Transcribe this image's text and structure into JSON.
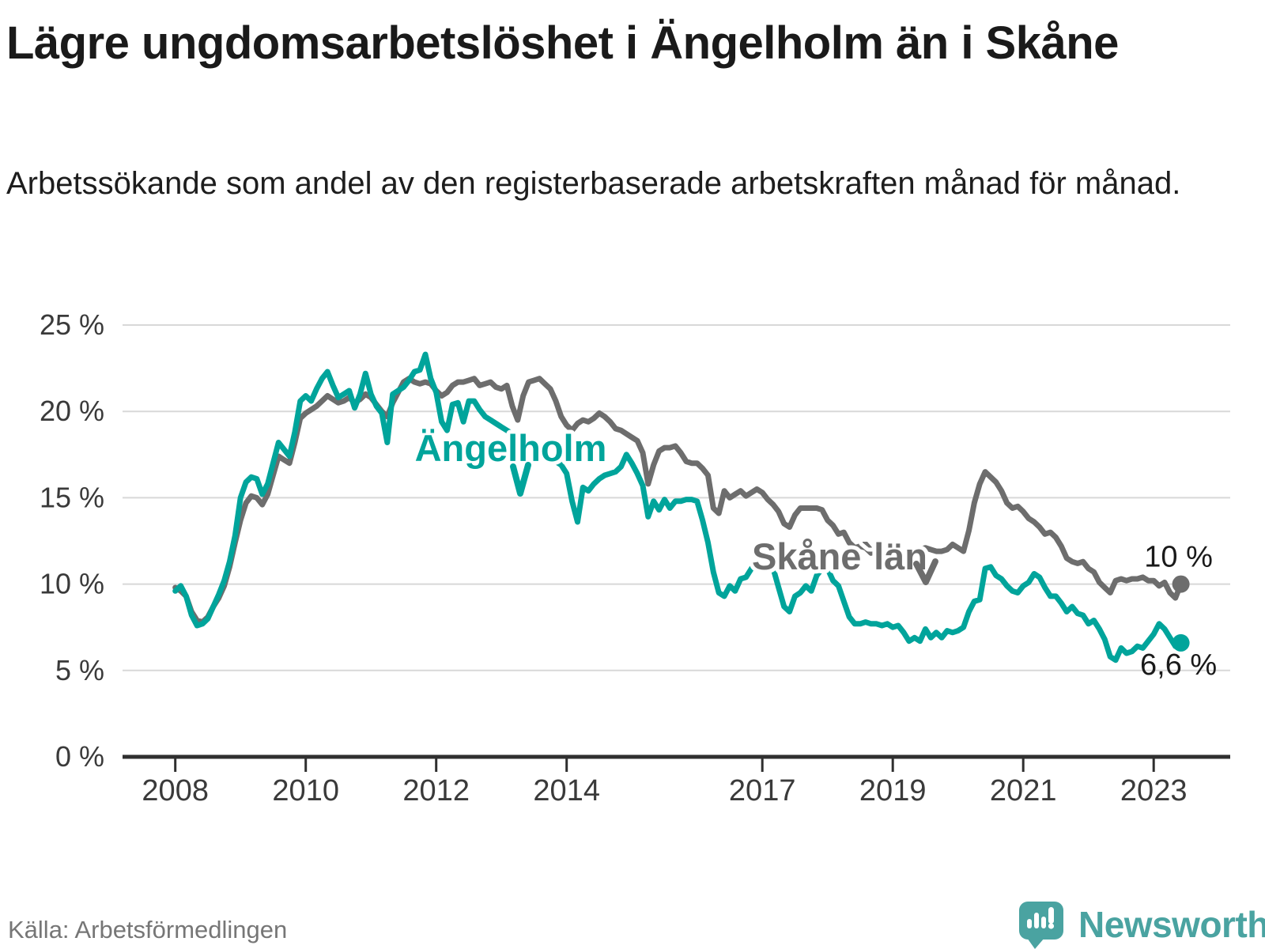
{
  "title": "Lägre ungdomsarbetslöshet i Ängelholm än i Skåne",
  "subtitle": "Arbetssökande som andel av den registerbaserade arbetskraften månad för månad.",
  "source": {
    "text": "Källa: Arbetsförmedlingen"
  },
  "brand": {
    "name": "Newsworthy"
  },
  "colors": {
    "angelholm": "#00a49b",
    "skane": "#6d6d6d",
    "grid": "#d8d8d8",
    "axis": "#2f2f2f",
    "tick_label": "#3a3a3a",
    "value_label": "#1a1a1a",
    "brand_teal": "#4aa3a1"
  },
  "chart_data": {
    "type": "line",
    "unit": "percent",
    "frequency": "monthly",
    "x_start": "2008-01",
    "x_end": "2023-06",
    "ylim": [
      0,
      25
    ],
    "grid": true,
    "y_ticks": [
      {
        "value": 0,
        "label": "0 %"
      },
      {
        "value": 5,
        "label": "5 %"
      },
      {
        "value": 10,
        "label": "10 %"
      },
      {
        "value": 15,
        "label": "15 %"
      },
      {
        "value": 20,
        "label": "20 %"
      },
      {
        "value": 25,
        "label": "25 %"
      }
    ],
    "x_ticks": [
      {
        "year": 2008,
        "label": "2008"
      },
      {
        "year": 2010,
        "label": "2010"
      },
      {
        "year": 2012,
        "label": "2012"
      },
      {
        "year": 2014,
        "label": "2014"
      },
      {
        "year": 2017,
        "label": "2017"
      },
      {
        "year": 2019,
        "label": "2019"
      },
      {
        "year": 2021,
        "label": "2021"
      },
      {
        "year": 2023,
        "label": "2023"
      }
    ],
    "series": [
      {
        "name": "Skåne län",
        "label": "Skåne`län",
        "color": "#6d6d6d",
        "final_value_label": "10 %",
        "values": [
          9.8,
          9.6,
          9.3,
          8.4,
          7.9,
          7.8,
          8.1,
          8.7,
          9.2,
          9.9,
          11.0,
          12.4,
          13.7,
          14.7,
          15.1,
          15.0,
          14.6,
          15.2,
          16.3,
          17.4,
          17.2,
          17.0,
          18.2,
          19.6,
          19.9,
          20.1,
          20.3,
          20.6,
          20.9,
          20.7,
          20.5,
          20.6,
          20.8,
          20.5,
          20.7,
          21.0,
          20.8,
          20.4,
          20.0,
          19.7,
          20.5,
          21.1,
          21.7,
          21.9,
          21.7,
          21.6,
          21.7,
          21.6,
          21.2,
          20.9,
          21.1,
          21.5,
          21.7,
          21.7,
          21.8,
          21.9,
          21.5,
          21.6,
          21.7,
          21.4,
          21.3,
          21.5,
          20.3,
          19.5,
          20.9,
          21.7,
          21.8,
          21.9,
          21.6,
          21.3,
          20.6,
          19.7,
          19.2,
          18.9,
          19.3,
          19.5,
          19.4,
          19.6,
          19.9,
          19.7,
          19.4,
          19.0,
          18.9,
          18.7,
          18.5,
          18.3,
          17.6,
          15.8,
          16.9,
          17.7,
          17.9,
          17.9,
          18.0,
          17.6,
          17.1,
          17.0,
          17.0,
          16.7,
          16.3,
          14.4,
          14.1,
          15.4,
          15.0,
          15.2,
          15.4,
          15.1,
          15.3,
          15.5,
          15.3,
          14.9,
          14.6,
          14.2,
          13.5,
          13.3,
          14.0,
          14.4,
          14.4,
          14.4,
          14.4,
          14.3,
          13.7,
          13.4,
          12.9,
          13.0,
          12.4,
          12.1,
          12.2,
          12.1,
          11.8,
          11.9,
          11.9,
          11.9,
          11.9,
          11.9,
          11.9,
          12.0,
          11.9,
          12.0,
          12.1,
          12.0,
          11.9,
          11.9,
          12.0,
          12.3,
          12.1,
          11.9,
          13.1,
          14.7,
          15.8,
          16.5,
          16.2,
          15.9,
          15.4,
          14.7,
          14.4,
          14.5,
          14.2,
          13.8,
          13.6,
          13.3,
          12.9,
          13.0,
          12.7,
          12.2,
          11.5,
          11.3,
          11.2,
          11.3,
          10.9,
          10.7,
          10.1,
          9.8,
          9.5,
          10.2,
          10.3,
          10.2,
          10.3,
          10.3,
          10.4,
          10.2,
          10.2,
          9.9,
          10.1,
          9.5,
          9.2,
          10.0
        ]
      },
      {
        "name": "Ängelholm",
        "label": "Ängelholm",
        "color": "#00a49b",
        "final_value_label": "6,6 %",
        "values": [
          9.6,
          9.9,
          9.3,
          8.2,
          7.6,
          7.7,
          8.0,
          8.7,
          9.4,
          10.2,
          11.3,
          12.8,
          15.0,
          15.9,
          16.2,
          16.1,
          15.2,
          15.8,
          17.0,
          18.2,
          17.8,
          17.4,
          18.8,
          20.6,
          20.9,
          20.6,
          21.3,
          21.9,
          22.3,
          21.5,
          20.8,
          21.0,
          21.2,
          20.2,
          21.0,
          22.2,
          21.0,
          20.3,
          19.9,
          18.2,
          21.0,
          21.2,
          21.4,
          21.8,
          22.3,
          22.4,
          23.3,
          21.9,
          21.1,
          19.4,
          18.9,
          20.4,
          20.5,
          19.4,
          20.6,
          20.6,
          20.1,
          19.7,
          19.5,
          19.3,
          19.1,
          18.9,
          18.7,
          18.5,
          18.2,
          18.0,
          17.8,
          17.5,
          17.3,
          17.2,
          17.1,
          16.9,
          16.4,
          14.8,
          13.6,
          15.6,
          15.4,
          15.8,
          16.1,
          16.3,
          16.4,
          16.5,
          16.8,
          17.5,
          17.0,
          16.4,
          15.7,
          13.9,
          14.8,
          14.3,
          14.9,
          14.4,
          14.8,
          14.8,
          14.9,
          14.9,
          14.8,
          13.7,
          12.4,
          10.7,
          9.5,
          9.3,
          9.9,
          9.6,
          10.3,
          10.4,
          10.9,
          11.4,
          11.7,
          11.5,
          10.9,
          9.8,
          8.7,
          8.4,
          9.3,
          9.5,
          9.9,
          9.6,
          10.5,
          10.9,
          10.9,
          10.2,
          9.9,
          9.0,
          8.1,
          7.7,
          7.7,
          7.8,
          7.7,
          7.7,
          7.6,
          7.7,
          7.5,
          7.6,
          7.2,
          6.7,
          6.9,
          6.7,
          7.4,
          6.9,
          7.2,
          6.9,
          7.3,
          7.2,
          7.3,
          7.5,
          8.4,
          9.0,
          9.1,
          10.9,
          11.0,
          10.5,
          10.3,
          9.9,
          9.6,
          9.5,
          9.9,
          10.1,
          10.6,
          10.4,
          9.8,
          9.3,
          9.3,
          8.9,
          8.4,
          8.7,
          8.3,
          8.2,
          7.7,
          7.9,
          7.4,
          6.8,
          5.8,
          5.6,
          6.3,
          6.0,
          6.1,
          6.4,
          6.3,
          6.7,
          7.1,
          7.7,
          7.4,
          6.9,
          6.4,
          6.6
        ]
      }
    ]
  }
}
